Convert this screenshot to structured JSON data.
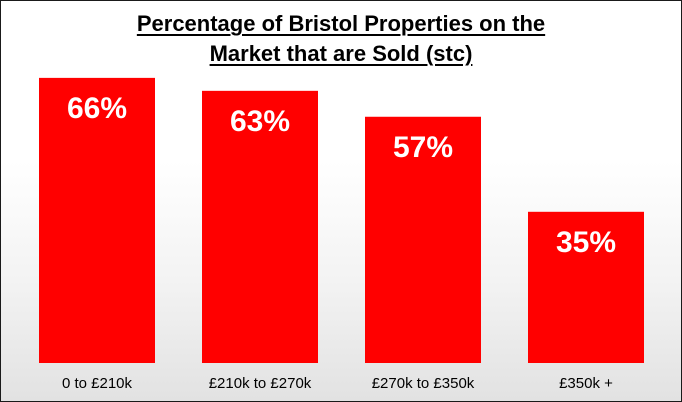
{
  "colors": {
    "bar": "#ff0000",
    "label": "#ffffff",
    "text": "#000000"
  },
  "chart_data": {
    "type": "bar",
    "title": "Percentage of Bristol Properties on the Market that are Sold (stc)",
    "title_lines": [
      "Percentage of Bristol Properties on the",
      "Market that are Sold (stc)"
    ],
    "categories": [
      "0 to £210k",
      "£210k to £270k",
      "£270k to £350k",
      "£350k +"
    ],
    "values": [
      66,
      63,
      57,
      35
    ],
    "value_labels": [
      "66%",
      "63%",
      "57%",
      "35%"
    ],
    "xlabel": "",
    "ylabel": "",
    "ylim": [
      0,
      100
    ],
    "grid": false,
    "legend": "none"
  }
}
